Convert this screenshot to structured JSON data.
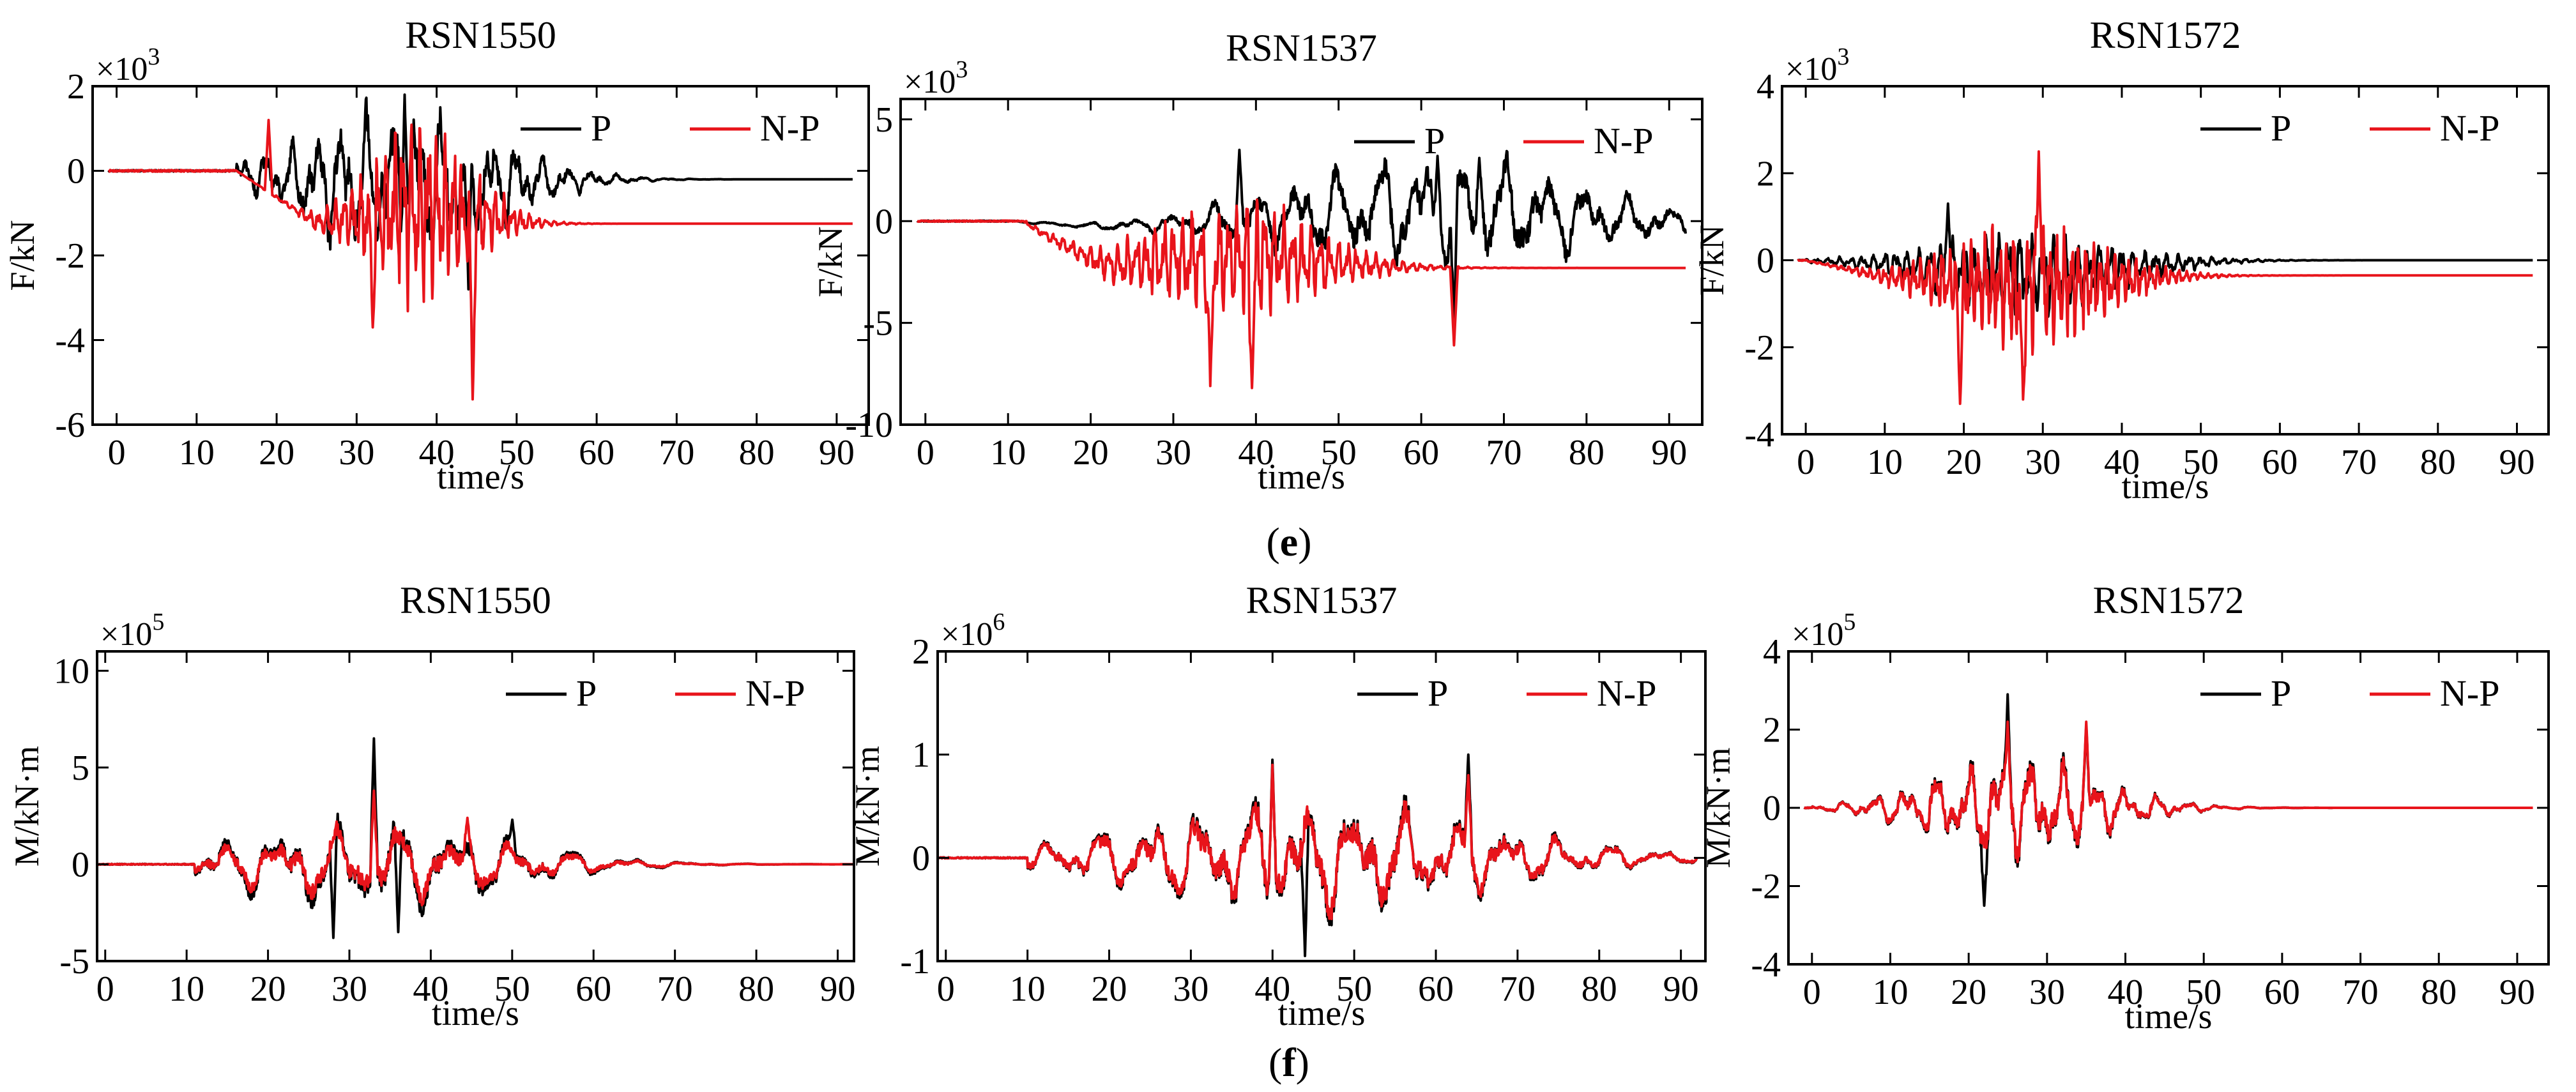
{
  "figure": {
    "row_labels": [
      {
        "letter": "e",
        "open": "(",
        "close": ")"
      },
      {
        "letter": "f",
        "open": "(",
        "close": ")"
      }
    ],
    "colors": {
      "P": "#000000",
      "N-P": "#e8141b",
      "axes": "#000000"
    },
    "legend_labels": [
      "P",
      "N-P"
    ]
  },
  "chart_data": [
    {
      "type": "line",
      "title": "RSN1550",
      "xlabel": "time/s",
      "ylabel": "F/kN",
      "scale_base": "×10",
      "scale_exp": "3",
      "xlim": [
        -3,
        94
      ],
      "ylim": [
        -6,
        2
      ],
      "xticks": [
        0,
        10,
        20,
        30,
        40,
        50,
        60,
        70,
        80,
        90
      ],
      "yticks": [
        -6,
        -4,
        -2,
        0,
        2
      ],
      "legend_position": "top-right",
      "series": [
        {
          "name": "P",
          "color": "#000000",
          "seed": 11,
          "onset": 15,
          "peak_t": 36,
          "decay": 16,
          "amp": 1.0,
          "scale": 1.8,
          "freq": 0.32,
          "offset": -0.3,
          "tail_offset": -0.2,
          "x": [
            36,
            44
          ],
          "y": [
            1.8,
            -2.8
          ]
        },
        {
          "name": "N-P",
          "color": "#e8141b",
          "seed": 7,
          "onset": 15,
          "peak_t": 38,
          "decay": 9,
          "amp": 1.0,
          "scale": 2.0,
          "freq": 0.95,
          "offset": -0.9,
          "tail_offset": -1.25,
          "x": [
            19,
            32,
            44.5
          ],
          "y": [
            1.2,
            -3.7,
            -5.4
          ]
        }
      ]
    },
    {
      "type": "line",
      "title": "RSN1537",
      "xlabel": "time/s",
      "ylabel": "F/kN",
      "scale_base": "×10",
      "scale_exp": "3",
      "xlim": [
        -3,
        94
      ],
      "ylim": [
        -10,
        6
      ],
      "xticks": [
        0,
        10,
        20,
        30,
        40,
        50,
        60,
        70,
        80,
        90
      ],
      "yticks": [
        -10,
        -5,
        0,
        5
      ],
      "legend_position": "top-right",
      "series": [
        {
          "name": "P",
          "color": "#000000",
          "seed": 23,
          "onset": 10,
          "peak_t": 62,
          "decay": 25,
          "amp": 1.0,
          "scale": 2.7,
          "freq": 0.2,
          "offset": 0.6,
          "tail_offset": -0.3,
          "x": [
            38,
            62,
            67,
            64
          ],
          "y": [
            3.5,
            3.2,
            3.1,
            -5.5
          ]
        },
        {
          "name": "N-P",
          "color": "#e8141b",
          "seed": 5,
          "onset": 12,
          "peak_t": 37,
          "decay": 14,
          "amp": 1.0,
          "scale": 2.8,
          "freq": 0.9,
          "offset": -1.8,
          "tail_offset": -2.3,
          "x": [
            34.5,
            39.5,
            64
          ],
          "y": [
            -8.1,
            -8.2,
            -6.1
          ]
        }
      ]
    },
    {
      "type": "line",
      "title": "RSN1572",
      "xlabel": "time/s",
      "ylabel": "F/kN",
      "scale_base": "×10",
      "scale_exp": "3",
      "xlim": [
        -3,
        94
      ],
      "ylim": [
        -4,
        4
      ],
      "xticks": [
        0,
        10,
        20,
        30,
        40,
        50,
        60,
        70,
        80,
        90
      ],
      "yticks": [
        -4,
        -2,
        0,
        2,
        4
      ],
      "legend_position": "top-right",
      "series": [
        {
          "name": "P",
          "color": "#000000",
          "seed": 31,
          "onset": 0,
          "peak_t": 28,
          "decay": 16,
          "amp": 1.0,
          "scale": 0.9,
          "freq": 0.7,
          "offset": -0.3,
          "tail_offset": 0.0,
          "x": [
            18
          ],
          "y": [
            1.3
          ]
        },
        {
          "name": "N-P",
          "color": "#e8141b",
          "seed": 19,
          "onset": 0,
          "peak_t": 28,
          "decay": 13,
          "amp": 1.0,
          "scale": 1.4,
          "freq": 1.1,
          "offset": -0.6,
          "tail_offset": -0.35,
          "x": [
            29.5,
            19.5,
            27.5
          ],
          "y": [
            2.5,
            -3.3,
            -3.2
          ]
        }
      ]
    },
    {
      "type": "line",
      "title": "RSN1550",
      "xlabel": "time/s",
      "ylabel": "M/kN·m",
      "scale_base": "×10",
      "scale_exp": "5",
      "xlim": [
        -1,
        92
      ],
      "ylim": [
        -5,
        11
      ],
      "xticks": [
        0,
        10,
        20,
        30,
        40,
        50,
        60,
        70,
        80,
        90
      ],
      "yticks": [
        -5,
        0,
        5,
        10
      ],
      "legend_position": "top-right",
      "series": [
        {
          "name": "P",
          "color": "#000000",
          "seed": 3,
          "onset": 11,
          "peak_t": 33,
          "decay": 22,
          "amp": 1.0,
          "scale": 2.4,
          "freq": 0.14,
          "offset": 0,
          "tail_offset": 0,
          "x": [
            33,
            28,
            36,
            50
          ],
          "y": [
            6.5,
            -3.8,
            -3.5,
            2.3
          ]
        },
        {
          "name": "N-P",
          "color": "#e8141b",
          "seed": 3,
          "onset": 11,
          "peak_t": 33,
          "decay": 22,
          "amp": 1.0,
          "scale": 1.9,
          "freq": 0.14,
          "offset": 0,
          "tail_offset": 0,
          "x": [
            33,
            44.5
          ],
          "y": [
            3.8,
            2.4
          ]
        }
      ]
    },
    {
      "type": "line",
      "title": "RSN1537",
      "xlabel": "time/s",
      "ylabel": "M/kN·m",
      "scale_base": "×10",
      "scale_exp": "6",
      "xlim": [
        -1,
        93
      ],
      "ylim": [
        -1,
        2
      ],
      "xticks": [
        0,
        10,
        20,
        30,
        40,
        50,
        60,
        70,
        80,
        90
      ],
      "yticks": [
        -1,
        0,
        1,
        2
      ],
      "legend_position": "top-right",
      "series": [
        {
          "name": "P",
          "color": "#000000",
          "seed": 8,
          "onset": 10,
          "peak_t": 45,
          "decay": 30,
          "amp": 1.0,
          "scale": 0.55,
          "freq": 0.16,
          "offset": 0,
          "tail_offset": 0,
          "x": [
            40,
            64,
            44
          ],
          "y": [
            0.95,
            1.0,
            -0.95
          ]
        },
        {
          "name": "N-P",
          "color": "#e8141b",
          "seed": 8,
          "onset": 10,
          "peak_t": 45,
          "decay": 30,
          "amp": 1.0,
          "scale": 0.5,
          "freq": 0.16,
          "offset": 0,
          "tail_offset": 0,
          "x": [
            40,
            64
          ],
          "y": [
            0.9,
            0.8
          ]
        }
      ]
    },
    {
      "type": "line",
      "title": "RSN1572",
      "xlabel": "time/s",
      "ylabel": "M/kN·m",
      "scale_base": "×10",
      "scale_exp": "5",
      "xlim": [
        -3,
        94
      ],
      "ylim": [
        -4,
        4
      ],
      "xticks": [
        0,
        10,
        20,
        30,
        40,
        50,
        60,
        70,
        80,
        90
      ],
      "yticks": [
        -4,
        -2,
        0,
        2,
        4
      ],
      "legend_position": "top-right",
      "series": [
        {
          "name": "P",
          "color": "#000000",
          "seed": 14,
          "onset": 0,
          "peak_t": 26,
          "decay": 15,
          "amp": 1.0,
          "scale": 1.3,
          "freq": 0.25,
          "offset": 0,
          "tail_offset": 0,
          "x": [
            25,
            22,
            35
          ],
          "y": [
            2.9,
            -2.5,
            2.1
          ]
        },
        {
          "name": "N-P",
          "color": "#e8141b",
          "seed": 14,
          "onset": 0,
          "peak_t": 26,
          "decay": 15,
          "amp": 1.0,
          "scale": 1.2,
          "freq": 0.25,
          "offset": 0,
          "tail_offset": 0,
          "x": [
            25,
            35
          ],
          "y": [
            2.2,
            2.2
          ]
        }
      ]
    }
  ]
}
